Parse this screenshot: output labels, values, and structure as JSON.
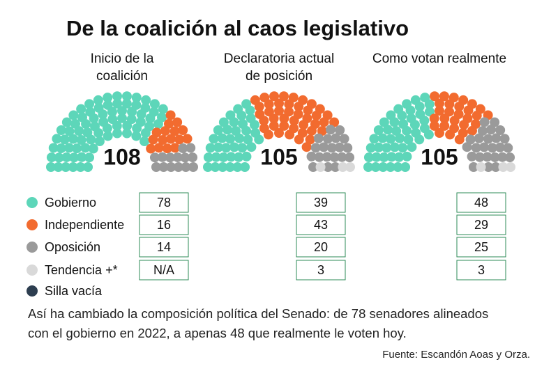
{
  "title": "De la coalición al caos legislativo",
  "legend": [
    {
      "name": "Gobierno",
      "color": "#5dd6b9"
    },
    {
      "name": "Independiente",
      "color": "#f26b2f"
    },
    {
      "name": "Oposición",
      "color": "#9a9a9a"
    },
    {
      "name": "Tendencia +*",
      "color": "#d9d9d9"
    },
    {
      "name": "Silla vacía",
      "color": "#2d3e50"
    }
  ],
  "chart_data": [
    {
      "type": "parliament",
      "title": [
        "Inicio de la",
        "coalición"
      ],
      "total": 108,
      "values": [
        78,
        16,
        14,
        null
      ],
      "value_labels": [
        "78",
        "16",
        "14",
        "N/A"
      ]
    },
    {
      "type": "parliament",
      "title": [
        "Declaratoria actual",
        "de posición"
      ],
      "total": 105,
      "values": [
        39,
        43,
        20,
        3
      ],
      "value_labels": [
        "39",
        "43",
        "20",
        "3"
      ]
    },
    {
      "type": "parliament",
      "title": [
        "Como votan realmente"
      ],
      "total": 105,
      "values": [
        48,
        29,
        25,
        3
      ],
      "value_labels": [
        "48",
        "29",
        "25",
        "3"
      ]
    }
  ],
  "caption": [
    "Así ha cambiado la composición política del Senado: de 78 senadores alineados",
    "con el gobierno en 2022, a apenas 48 que realmente le voten hoy."
  ],
  "source": "Fuente: Escandón Aoas y Orza."
}
